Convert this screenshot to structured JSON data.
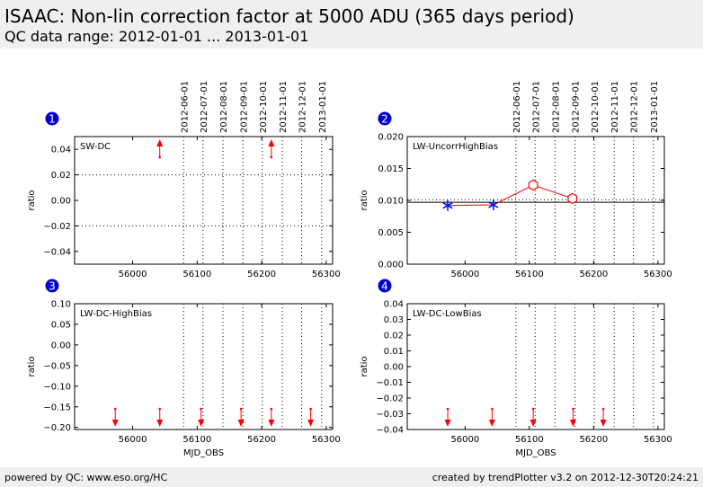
{
  "header": {
    "title": "ISAAC: Non-lin correction factor at 5000 ADU (365 days period)",
    "subtitle": "QC data range: 2012-01-01 ... 2013-01-01"
  },
  "footer": {
    "left": "powered by QC: www.eso.org/HC",
    "right": "created by trendPlotter v3.2 on 2012-12-30T20:24:21"
  },
  "colors": {
    "data": "#ff0000",
    "marker": "#0000ff",
    "badge": "#0000cc",
    "band": "#efefef"
  },
  "chart_data": [
    {
      "type": "scatter",
      "number": "1",
      "label": "SW-DC",
      "xlabel": "",
      "ylabel": "ratio",
      "xlim": [
        55910,
        56310
      ],
      "ylim": [
        -0.05,
        0.05
      ],
      "xticks": [
        56000,
        56100,
        56200,
        56300
      ],
      "yticks": [
        0.04,
        0.02,
        0.0,
        -0.02,
        -0.04
      ],
      "ytick_labels": [
        "0.04",
        "0.02",
        "0.00",
        "−0.02",
        "−0.04"
      ],
      "date_lines": [
        56079,
        56109,
        56140,
        56171,
        56201,
        56232,
        56262,
        56293
      ],
      "date_labels": [
        "2012-06-01",
        "2012-07-01",
        "2012-08-01",
        "2012-09-01",
        "2012-10-01",
        "2012-11-01",
        "2012-12-01",
        "2013-01-01"
      ],
      "hlines": [
        0.02,
        -0.02
      ],
      "solid_hline": null,
      "offscale_points": [
        {
          "x": 56042,
          "dir": "up"
        },
        {
          "x": 56215,
          "dir": "up"
        }
      ],
      "points": [],
      "stars": [],
      "line": []
    },
    {
      "type": "scatter",
      "number": "2",
      "label": "LW-UncorrHighBias",
      "xlabel": "",
      "ylabel": "ratio",
      "xlim": [
        55910,
        56310
      ],
      "ylim": [
        0.0,
        0.02
      ],
      "xticks": [
        56000,
        56100,
        56200,
        56300
      ],
      "yticks": [
        0.02,
        0.015,
        0.01,
        0.005,
        0.0
      ],
      "ytick_labels": [
        "0.020",
        "0.015",
        "0.010",
        "0.005",
        "0.000"
      ],
      "date_lines": [
        56079,
        56109,
        56140,
        56171,
        56201,
        56232,
        56262,
        56293
      ],
      "date_labels": [
        "2012-06-01",
        "2012-07-01",
        "2012-08-01",
        "2012-09-01",
        "2012-10-01",
        "2012-11-01",
        "2012-12-01",
        "2013-01-01"
      ],
      "hlines": [
        0.0101
      ],
      "solid_hline": 0.0097,
      "offscale_points": [],
      "points": [
        {
          "x": 56106,
          "y": 0.0124
        },
        {
          "x": 56167,
          "y": 0.0103
        }
      ],
      "stars": [
        {
          "x": 55973,
          "y": 0.0092
        },
        {
          "x": 56044,
          "y": 0.0093
        }
      ],
      "line": [
        {
          "x": 55973,
          "y": 0.0092
        },
        {
          "x": 56044,
          "y": 0.0093
        },
        {
          "x": 56106,
          "y": 0.0124
        },
        {
          "x": 56167,
          "y": 0.0103
        }
      ]
    },
    {
      "type": "scatter",
      "number": "3",
      "label": "LW-DC-HighBias",
      "xlabel": "MJD_OBS",
      "ylabel": "ratio",
      "xlim": [
        55910,
        56310
      ],
      "ylim": [
        -0.205,
        0.1
      ],
      "xticks": [
        56000,
        56100,
        56200,
        56300
      ],
      "yticks": [
        0.1,
        0.05,
        0.0,
        -0.05,
        -0.1,
        -0.15,
        -0.2
      ],
      "ytick_labels": [
        "0.10",
        "0.05",
        "0.00",
        "−0.05",
        "−0.10",
        "−0.15",
        "−0.20"
      ],
      "date_lines": [
        56079,
        56109,
        56140,
        56171,
        56201,
        56232,
        56262,
        56293
      ],
      "date_labels": [],
      "hlines": [],
      "solid_hline": null,
      "offscale_points": [
        {
          "x": 55973,
          "dir": "down"
        },
        {
          "x": 56042,
          "dir": "down"
        },
        {
          "x": 56106,
          "dir": "down"
        },
        {
          "x": 56168,
          "dir": "down"
        },
        {
          "x": 56215,
          "dir": "down"
        },
        {
          "x": 56276,
          "dir": "down"
        }
      ],
      "points": [],
      "stars": [],
      "line": []
    },
    {
      "type": "scatter",
      "number": "4",
      "label": "LW-DC-LowBias",
      "xlabel": "MJD_OBS",
      "ylabel": "ratio",
      "xlim": [
        55910,
        56310
      ],
      "ylim": [
        -0.04,
        0.04
      ],
      "xticks": [
        56000,
        56100,
        56200,
        56300
      ],
      "yticks": [
        0.04,
        0.03,
        0.02,
        0.01,
        0.0,
        -0.01,
        -0.02,
        -0.03,
        -0.04
      ],
      "ytick_labels": [
        "0.04",
        "0.03",
        "0.02",
        "0.01",
        "0.00",
        "−0.01",
        "−0.02",
        "−0.03",
        "−0.04"
      ],
      "date_lines": [
        56079,
        56109,
        56140,
        56171,
        56201,
        56232,
        56262,
        56293
      ],
      "date_labels": [],
      "hlines": [],
      "solid_hline": null,
      "offscale_points": [
        {
          "x": 55973,
          "dir": "down"
        },
        {
          "x": 56042,
          "dir": "down"
        },
        {
          "x": 56106,
          "dir": "down"
        },
        {
          "x": 56168,
          "dir": "down"
        },
        {
          "x": 56215,
          "dir": "down"
        }
      ],
      "points": [],
      "stars": [],
      "line": []
    }
  ]
}
